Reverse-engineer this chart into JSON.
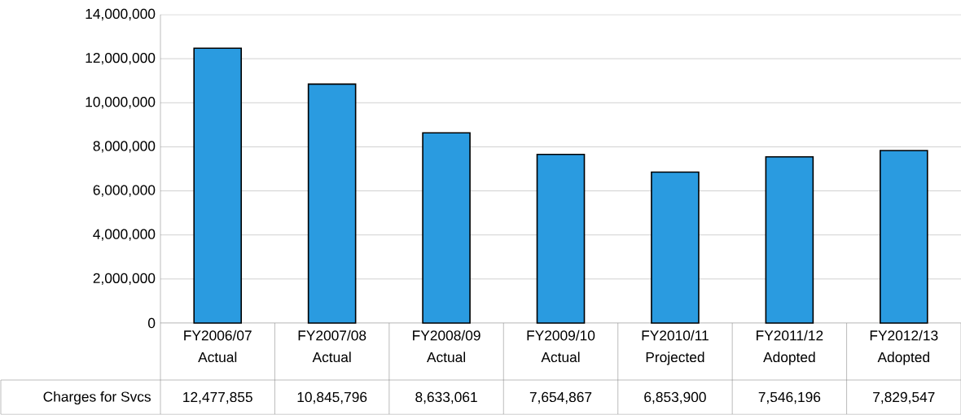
{
  "chart_data": {
    "type": "bar",
    "categories": [
      "FY2006/07 Actual",
      "FY2007/08 Actual",
      "FY2008/09 Actual",
      "FY2009/10 Actual",
      "FY2010/11 Projected",
      "FY2011/12 Adopted",
      "FY2012/13 Adopted"
    ],
    "series": [
      {
        "name": "Charges for Svcs",
        "color": "#2a9be0",
        "values": [
          12477855,
          10845796,
          8633061,
          7654867,
          6853900,
          7546196,
          7829547
        ],
        "value_labels": [
          "12,477,855",
          "10,845,796",
          "8,633,061",
          "7,654,867",
          "6,853,900",
          "7,546,196",
          "7,829,547"
        ]
      }
    ],
    "ylim": [
      0,
      14000000
    ],
    "yticks": [
      0,
      {
        "value": 2000000,
        "label": "2,000,000"
      },
      {
        "value": 4000000,
        "label": "4,000,000"
      },
      {
        "value": 6000000,
        "label": "6,000,000"
      },
      {
        "value": 8000000,
        "label": "8,000,000"
      },
      {
        "value": 10000000,
        "label": "10,000,000"
      },
      {
        "value": 12000000,
        "label": "12,000,000"
      },
      {
        "value": 14000000,
        "label": "14,000,000"
      }
    ],
    "grid": "y"
  }
}
